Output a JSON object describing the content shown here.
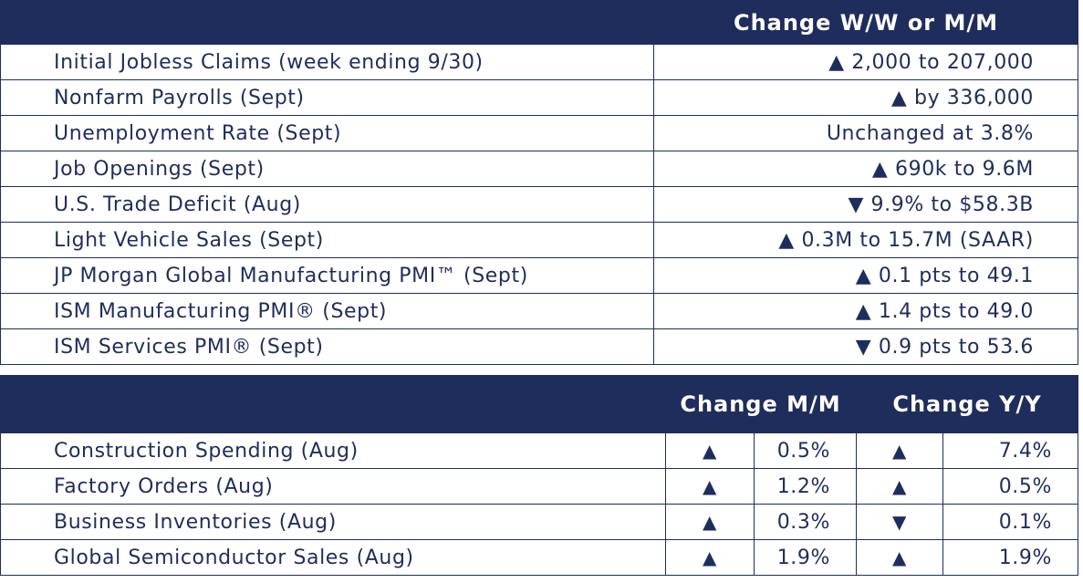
{
  "header_top": {
    "change_label": "Change W/W or M/M"
  },
  "indicators": [
    {
      "label": "Initial Jobless Claims (week ending 9/30)",
      "change": "▲ 2,000 to 207,000"
    },
    {
      "label": "Nonfarm Payrolls (Sept)",
      "change": "▲ by 336,000"
    },
    {
      "label": "Unemployment Rate (Sept)",
      "change": "Unchanged at 3.8%"
    },
    {
      "label": "Job Openings (Sept)",
      "change": "▲ 690k to 9.6M"
    },
    {
      "label": "U.S. Trade Deficit (Aug)",
      "change": "▼ 9.9% to $58.3B"
    },
    {
      "label": "Light Vehicle Sales (Sept)",
      "change": "▲ 0.3M to 15.7M (SAAR)"
    },
    {
      "label": "JP Morgan Global Manufacturing PMI™ (Sept)",
      "change": "▲ 0.1 pts to 49.1"
    },
    {
      "label": "ISM Manufacturing PMI® (Sept)",
      "change": "▲ 1.4 pts to 49.0"
    },
    {
      "label": "ISM Services PMI® (Sept)",
      "change": "▼ 0.9 pts to 53.6"
    }
  ],
  "header_bottom": {
    "mm_label": "Change M/M",
    "yy_label": "Change Y/Y"
  },
  "spending": [
    {
      "label": "Construction Spending (Aug)",
      "mm_arrow": "▲",
      "mm": "0.5%",
      "yy_arrow": "▲",
      "yy": "7.4%"
    },
    {
      "label": "Factory Orders (Aug)",
      "mm_arrow": "▲",
      "mm": "1.2%",
      "yy_arrow": "▲",
      "yy": "0.5%"
    },
    {
      "label": "Business Inventories (Aug)",
      "mm_arrow": "▲",
      "mm": "0.3%",
      "yy_arrow": "▼",
      "yy": "0.1%"
    },
    {
      "label": "Global Semiconductor Sales (Aug)",
      "mm_arrow": "▲",
      "mm": "1.9%",
      "yy_arrow": "▲",
      "yy": "1.9%"
    }
  ],
  "colors": {
    "navy": "#1f2d5c",
    "white": "#ffffff"
  }
}
